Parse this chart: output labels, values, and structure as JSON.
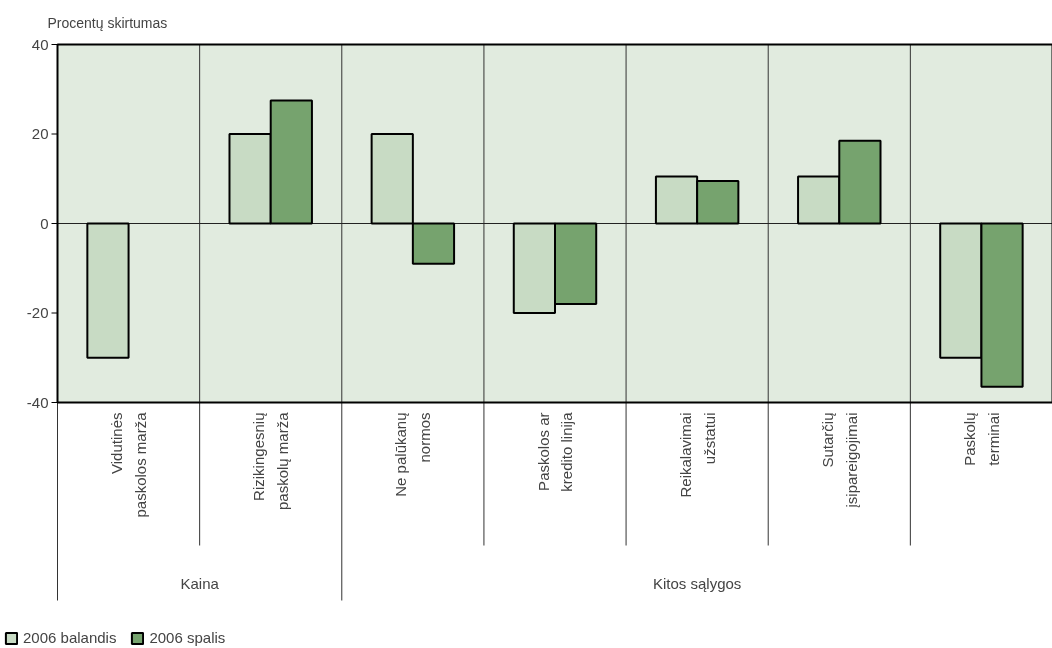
{
  "chart_data": {
    "type": "bar",
    "ylabel": "Procentų skirtumas",
    "categories": [
      "Vidutinės paskolos marža",
      "Rizikingesnių paskolų marža",
      "Ne palūkanų normos",
      "Paskolos ar kredito linija",
      "Reikalavimai užstatui",
      "Sutarčių įsipareigojimai",
      "Paskolų terminai"
    ],
    "series": [
      {
        "name": "2006 balandis",
        "color": "#c8dbc4",
        "values": [
          -30,
          20,
          20,
          -20,
          10.5,
          10.5,
          -30
        ]
      },
      {
        "name": "2006 spalis",
        "color": "#76a36e",
        "values": [
          null,
          27.5,
          -9,
          -18,
          9.5,
          18.5,
          -36.5
        ]
      }
    ],
    "ylim": [
      -40,
      40
    ],
    "yticks": [
      -40,
      -20,
      0,
      20,
      40
    ],
    "annotations": [
      "Kaina",
      "Kitos sąlygos"
    ],
    "legend": "bottom left"
  }
}
